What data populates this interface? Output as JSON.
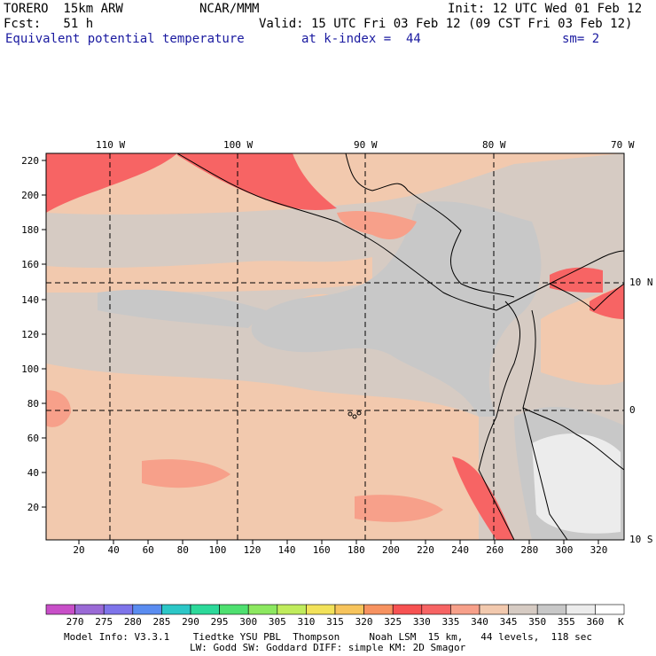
{
  "header": {
    "model": "TORERO  15km ARW",
    "center": "NCAR/MMM",
    "init": "Init: 12 UTC Wed 01 Feb 12",
    "fcst": "Fcst:   51 h",
    "valid": "Valid: 15 UTC Fri 03 Feb 12 (09 CST Fri 03 Feb 12)",
    "field": "Equivalent potential temperature",
    "level": "at k-index =  44",
    "smooth": "sm= 2"
  },
  "map": {
    "top_lon_labels": [
      "110 W",
      "100 W",
      "90 W",
      "80 W",
      "70 W"
    ],
    "right_lat_labels": [
      "10 N",
      "0",
      "10 S"
    ],
    "y_ticks": [
      "220",
      "200",
      "180",
      "160",
      "140",
      "120",
      "100",
      "80",
      "60",
      "40",
      "20"
    ],
    "x_ticks": [
      "20",
      "40",
      "60",
      "80",
      "100",
      "120",
      "140",
      "160",
      "180",
      "200",
      "220",
      "240",
      "260",
      "280",
      "300",
      "320"
    ]
  },
  "colorbar": {
    "labels": [
      "270",
      "275",
      "280",
      "285",
      "290",
      "295",
      "300",
      "305",
      "310",
      "315",
      "320",
      "325",
      "330",
      "335",
      "340",
      "345",
      "350",
      "355",
      "360"
    ],
    "unit": "K",
    "colors": [
      "#c84fc8",
      "#9a6ad6",
      "#7e74ea",
      "#5a8cf0",
      "#2cc7c7",
      "#2cd99a",
      "#4ee070",
      "#8ce860",
      "#c0ec5c",
      "#f2e25a",
      "#f7c45c",
      "#f79260",
      "#f75252",
      "#f76464",
      "#f7a08a",
      "#f2c9ae",
      "#d6cbc3",
      "#c8c8c8",
      "#ececec",
      "#ffffff"
    ]
  },
  "footer": {
    "line1": "Model Info: V3.3.1    Tiedtke YSU PBL  Thompson     Noah LSM  15 km,   44 levels,  118 sec",
    "line2": "LW: Godd SW: Goddard DIFF: simple KM: 2D Smagor"
  }
}
